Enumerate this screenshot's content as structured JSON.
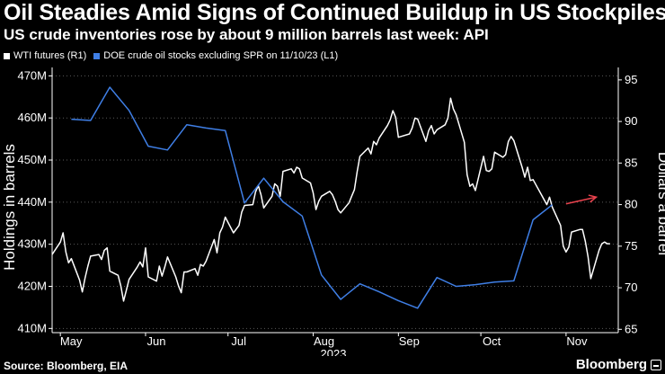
{
  "header": {
    "title": "Oil Steadies Amid Signs of Continued Buildup in US Stockpiles",
    "subtitle": "US crude inventories rose by about 9 million barrels last week: API"
  },
  "footer": {
    "source": "Source: Bloomberg, EIA",
    "brand": "Bloomberg"
  },
  "colors": {
    "background": "#000000",
    "wti": "#ffffff",
    "doe": "#3f7fe6",
    "arrow": "#e8424d",
    "grid": "#5a5a5a",
    "text": "#ffffff"
  },
  "chart_data": {
    "type": "line",
    "legend_placement": "top-left",
    "grid": true,
    "year_label": "2023",
    "ylabel_left": "Holdings in barrels",
    "ylabel_right": "Dollars a barrel",
    "x_range": [
      "2023-04-28",
      "2023-11-20"
    ],
    "months": [
      {
        "label": "May",
        "date": "2023-05-01"
      },
      {
        "label": "Jun",
        "date": "2023-06-01"
      },
      {
        "label": "Jul",
        "date": "2023-07-01"
      },
      {
        "label": "Aug",
        "date": "2023-08-01"
      },
      {
        "label": "Sep",
        "date": "2023-09-01"
      },
      {
        "label": "Oct",
        "date": "2023-10-01"
      },
      {
        "label": "Nov",
        "date": "2023-11-01"
      }
    ],
    "y_left": {
      "min": 409,
      "max": 472,
      "ticks": [
        410,
        420,
        430,
        440,
        450,
        460,
        470
      ],
      "tick_labels": [
        "410M",
        "420M",
        "430M",
        "440M",
        "450M",
        "460M",
        "470M"
      ]
    },
    "y_right": {
      "min": 64.6,
      "max": 96.5,
      "ticks": [
        65,
        70,
        75,
        80,
        85,
        90,
        95
      ],
      "tick_labels": [
        "65",
        "70",
        "75",
        "80",
        "85",
        "90",
        "95"
      ]
    },
    "series": [
      {
        "name": "WTI futures (R1)",
        "axis": "right",
        "color": "#ffffff",
        "points": [
          [
            "2023-04-28",
            74.0
          ],
          [
            "2023-05-01",
            75.5
          ],
          [
            "2023-05-02",
            76.6
          ],
          [
            "2023-05-03",
            74.3
          ],
          [
            "2023-05-04",
            73.0
          ],
          [
            "2023-05-05",
            73.5
          ],
          [
            "2023-05-08",
            70.9
          ],
          [
            "2023-05-09",
            69.5
          ],
          [
            "2023-05-10",
            71.2
          ],
          [
            "2023-05-11",
            72.6
          ],
          [
            "2023-05-12",
            73.8
          ],
          [
            "2023-05-15",
            74.0
          ],
          [
            "2023-05-16",
            73.4
          ],
          [
            "2023-05-17",
            74.5
          ],
          [
            "2023-05-18",
            74.8
          ],
          [
            "2023-05-19",
            72.0
          ],
          [
            "2023-05-22",
            71.5
          ],
          [
            "2023-05-23",
            70.2
          ],
          [
            "2023-05-24",
            68.4
          ],
          [
            "2023-05-25",
            69.7
          ],
          [
            "2023-05-26",
            71.0
          ],
          [
            "2023-05-29",
            72.5
          ],
          [
            "2023-05-30",
            73.1
          ],
          [
            "2023-05-31",
            72.5
          ],
          [
            "2023-06-01",
            74.8
          ],
          [
            "2023-06-02",
            71.3
          ],
          [
            "2023-06-05",
            70.8
          ],
          [
            "2023-06-06",
            72.6
          ],
          [
            "2023-06-07",
            71.4
          ],
          [
            "2023-06-08",
            72.5
          ],
          [
            "2023-06-09",
            73.7
          ],
          [
            "2023-06-12",
            71.3
          ],
          [
            "2023-06-13",
            70.2
          ],
          [
            "2023-06-14",
            69.4
          ],
          [
            "2023-06-15",
            71.9
          ],
          [
            "2023-06-16",
            71.9
          ],
          [
            "2023-06-19",
            72.3
          ],
          [
            "2023-06-20",
            71.5
          ],
          [
            "2023-06-21",
            72.8
          ],
          [
            "2023-06-22",
            72.6
          ],
          [
            "2023-06-23",
            73.2
          ],
          [
            "2023-06-26",
            75.8
          ],
          [
            "2023-06-27",
            74.2
          ],
          [
            "2023-06-28",
            76.6
          ],
          [
            "2023-06-29",
            77.3
          ],
          [
            "2023-06-30",
            78.5
          ],
          [
            "2023-07-03",
            76.6
          ],
          [
            "2023-07-05",
            77.5
          ],
          [
            "2023-07-06",
            79.1
          ],
          [
            "2023-07-07",
            79.9
          ],
          [
            "2023-07-10",
            80.0
          ],
          [
            "2023-07-11",
            81.5
          ],
          [
            "2023-07-12",
            82.3
          ],
          [
            "2023-07-13",
            81.2
          ],
          [
            "2023-07-14",
            79.6
          ],
          [
            "2023-07-17",
            81.0
          ],
          [
            "2023-07-18",
            82.5
          ],
          [
            "2023-07-19",
            82.2
          ],
          [
            "2023-07-20",
            81.0
          ],
          [
            "2023-07-21",
            84.0
          ],
          [
            "2023-07-24",
            84.3
          ],
          [
            "2023-07-25",
            83.8
          ],
          [
            "2023-07-26",
            84.5
          ],
          [
            "2023-07-27",
            84.3
          ],
          [
            "2023-07-28",
            83.2
          ],
          [
            "2023-07-31",
            82.6
          ],
          [
            "2023-08-01",
            81.4
          ],
          [
            "2023-08-02",
            79.4
          ],
          [
            "2023-08-03",
            80.4
          ],
          [
            "2023-08-04",
            81.0
          ],
          [
            "2023-08-07",
            81.6
          ],
          [
            "2023-08-08",
            81.2
          ],
          [
            "2023-08-09",
            80.4
          ],
          [
            "2023-08-10",
            79.4
          ],
          [
            "2023-08-11",
            79.0
          ],
          [
            "2023-08-14",
            80.2
          ],
          [
            "2023-08-15",
            81.0
          ],
          [
            "2023-08-16",
            81.8
          ],
          [
            "2023-08-17",
            84.0
          ],
          [
            "2023-08-18",
            85.8
          ],
          [
            "2023-08-21",
            86.8
          ],
          [
            "2023-08-22",
            86.1
          ],
          [
            "2023-08-23",
            87.6
          ],
          [
            "2023-08-24",
            87.2
          ],
          [
            "2023-08-25",
            88.0
          ],
          [
            "2023-08-28",
            89.5
          ],
          [
            "2023-08-29",
            90.2
          ],
          [
            "2023-08-30",
            91.3
          ],
          [
            "2023-08-31",
            90.5
          ],
          [
            "2023-09-01",
            88.1
          ],
          [
            "2023-09-05",
            88.5
          ],
          [
            "2023-09-06",
            89.2
          ],
          [
            "2023-09-07",
            90.4
          ],
          [
            "2023-09-08",
            90.3
          ],
          [
            "2023-09-11",
            87.6
          ],
          [
            "2023-09-12",
            88.9
          ],
          [
            "2023-09-13",
            89.5
          ],
          [
            "2023-09-14",
            88.5
          ],
          [
            "2023-09-15",
            89.0
          ],
          [
            "2023-09-18",
            89.6
          ],
          [
            "2023-09-19",
            90.4
          ],
          [
            "2023-09-20",
            92.8
          ],
          [
            "2023-09-21",
            91.5
          ],
          [
            "2023-09-22",
            90.8
          ],
          [
            "2023-09-25",
            87.5
          ],
          [
            "2023-09-26",
            83.6
          ],
          [
            "2023-09-27",
            82.2
          ],
          [
            "2023-09-28",
            82.5
          ],
          [
            "2023-09-29",
            81.7
          ],
          [
            "2023-10-02",
            85.8
          ],
          [
            "2023-10-03",
            84.1
          ],
          [
            "2023-10-04",
            84.0
          ],
          [
            "2023-10-05",
            84.3
          ],
          [
            "2023-10-06",
            86.3
          ],
          [
            "2023-10-09",
            85.7
          ],
          [
            "2023-10-10",
            86.0
          ],
          [
            "2023-10-11",
            87.6
          ],
          [
            "2023-10-12",
            88.2
          ],
          [
            "2023-10-13",
            87.7
          ],
          [
            "2023-10-16",
            84.5
          ],
          [
            "2023-10-17",
            83.3
          ],
          [
            "2023-10-18",
            84.5
          ],
          [
            "2023-10-19",
            82.9
          ],
          [
            "2023-10-20",
            83.0
          ],
          [
            "2023-10-23",
            81.2
          ],
          [
            "2023-10-24",
            80.6
          ],
          [
            "2023-10-25",
            80.0
          ],
          [
            "2023-10-26",
            80.9
          ],
          [
            "2023-10-27",
            79.7
          ],
          [
            "2023-10-30",
            77.5
          ],
          [
            "2023-10-31",
            75.0
          ],
          [
            "2023-11-01",
            74.3
          ],
          [
            "2023-11-02",
            74.9
          ],
          [
            "2023-11-03",
            76.7
          ],
          [
            "2023-11-06",
            77.0
          ],
          [
            "2023-11-07",
            77.0
          ],
          [
            "2023-11-08",
            75.6
          ],
          [
            "2023-11-09",
            73.7
          ],
          [
            "2023-11-10",
            71.1
          ],
          [
            "2023-11-13",
            74.5
          ],
          [
            "2023-11-14",
            75.3
          ],
          [
            "2023-11-15",
            75.5
          ],
          [
            "2023-11-16",
            75.3
          ],
          [
            "2023-11-17",
            75.3
          ]
        ]
      },
      {
        "name": "DOE crude oil stocks excluding SPR on 11/10/23 (L1)",
        "axis": "left",
        "color": "#3f7fe6",
        "points": [
          [
            "2023-05-05",
            459.7
          ],
          [
            "2023-05-12",
            459.4
          ],
          [
            "2023-05-19",
            467.3
          ],
          [
            "2023-05-26",
            461.8
          ],
          [
            "2023-06-02",
            453.3
          ],
          [
            "2023-06-09",
            452.4
          ],
          [
            "2023-06-16",
            458.4
          ],
          [
            "2023-06-23",
            457.6
          ],
          [
            "2023-06-30",
            457.0
          ],
          [
            "2023-07-07",
            439.8
          ],
          [
            "2023-07-14",
            445.7
          ],
          [
            "2023-07-21",
            440.1
          ],
          [
            "2023-07-28",
            436.7
          ],
          [
            "2023-08-04",
            422.7
          ],
          [
            "2023-08-11",
            416.9
          ],
          [
            "2023-08-18",
            420.6
          ],
          [
            "2023-08-25",
            418.7
          ],
          [
            "2023-09-01",
            416.6
          ],
          [
            "2023-09-08",
            414.8
          ],
          [
            "2023-09-15",
            422.1
          ],
          [
            "2023-09-22",
            420.0
          ],
          [
            "2023-09-29",
            420.4
          ],
          [
            "2023-10-06",
            421.0
          ],
          [
            "2023-10-13",
            421.3
          ],
          [
            "2023-10-20",
            435.8
          ],
          [
            "2023-10-27",
            439.4
          ]
        ]
      }
    ],
    "annotation": {
      "type": "arrow",
      "color": "#e8424d",
      "from": [
        "2023-11-01",
        439.6
      ],
      "to": [
        "2023-11-12",
        441.2
      ],
      "axis": "left"
    }
  }
}
